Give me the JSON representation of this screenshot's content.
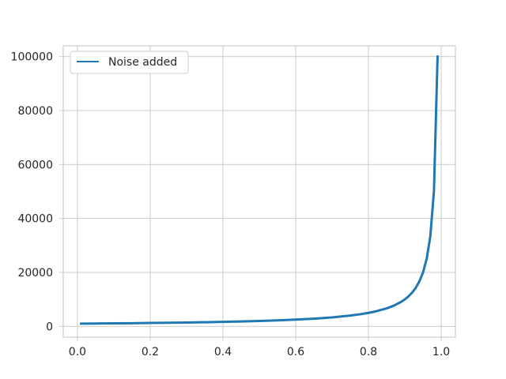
{
  "chart_data": {
    "type": "line",
    "title": "",
    "xlabel": "",
    "ylabel": "",
    "xlim": [
      -0.039,
      1.039
    ],
    "ylim": [
      -4000,
      104000
    ],
    "x_ticks": [
      0.0,
      0.2,
      0.4,
      0.6,
      0.8,
      1.0
    ],
    "x_tick_labels": [
      "0.0",
      "0.2",
      "0.4",
      "0.6",
      "0.8",
      "1.0"
    ],
    "y_ticks": [
      0,
      20000,
      40000,
      60000,
      80000,
      100000
    ],
    "y_tick_labels": [
      "0",
      "20000",
      "40000",
      "60000",
      "80000",
      "100000"
    ],
    "grid": true,
    "legend": {
      "position": "top-left"
    },
    "series": [
      {
        "name": "Noise added",
        "color": "#1f77b4",
        "x": [
          0.01,
          0.05,
          0.1,
          0.15,
          0.2,
          0.25,
          0.3,
          0.35,
          0.4,
          0.45,
          0.5,
          0.55,
          0.6,
          0.65,
          0.7,
          0.75,
          0.78,
          0.8,
          0.82,
          0.85,
          0.87,
          0.89,
          0.9,
          0.91,
          0.92,
          0.93,
          0.94,
          0.95,
          0.96,
          0.97,
          0.98,
          0.99
        ],
        "y": [
          1000,
          1053,
          1111,
          1176,
          1250,
          1333,
          1429,
          1538,
          1667,
          1818,
          2000,
          2222,
          2500,
          2857,
          3333,
          4000,
          4545,
          5000,
          5556,
          6667,
          7692,
          9091,
          10000,
          11111,
          12500,
          14286,
          16667,
          20000,
          25000,
          33333,
          50000,
          100000
        ]
      }
    ]
  }
}
